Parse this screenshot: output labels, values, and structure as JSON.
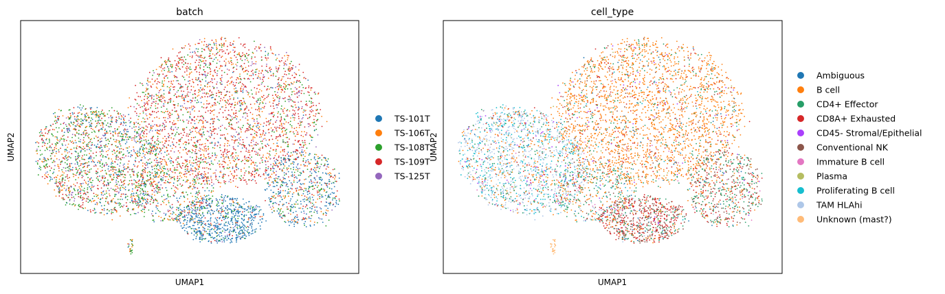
{
  "chart_data": [
    {
      "type": "scatter",
      "title": "batch",
      "xlabel": "UMAP1",
      "ylabel": "UMAP2",
      "grid": false,
      "xticks": [],
      "yticks": [],
      "legend": "outside-right",
      "series": [
        {
          "name": "TS-101T",
          "color": "#1f77b4"
        },
        {
          "name": "TS-106T",
          "color": "#ff7f0e"
        },
        {
          "name": "TS-108T",
          "color": "#2ca02c"
        },
        {
          "name": "TS-109T",
          "color": "#d62728"
        },
        {
          "name": "TS-125T",
          "color": "#9467bd"
        }
      ]
    },
    {
      "type": "scatter",
      "title": "cell_type",
      "xlabel": "UMAP1",
      "ylabel": "UMAP2",
      "grid": false,
      "xticks": [],
      "yticks": [],
      "legend": "outside-right",
      "series": [
        {
          "name": "Ambiguous",
          "color": "#1f77b4"
        },
        {
          "name": "B cell",
          "color": "#ff7f0e"
        },
        {
          "name": "CD4+ Effector",
          "color": "#279e68"
        },
        {
          "name": "CD8A+ Exhausted",
          "color": "#d62728"
        },
        {
          "name": "CD45- Stromal/Epithelial",
          "color": "#aa40fc"
        },
        {
          "name": "Conventional NK",
          "color": "#8c564b"
        },
        {
          "name": "Immature B cell",
          "color": "#e377c2"
        },
        {
          "name": "Plasma",
          "color": "#b5bd61"
        },
        {
          "name": "Proliferating B cell",
          "color": "#17becf"
        },
        {
          "name": "TAM HLAhi",
          "color": "#aec7e8"
        },
        {
          "name": "Unknown (mast?)",
          "color": "#ffbb78"
        }
      ]
    }
  ]
}
